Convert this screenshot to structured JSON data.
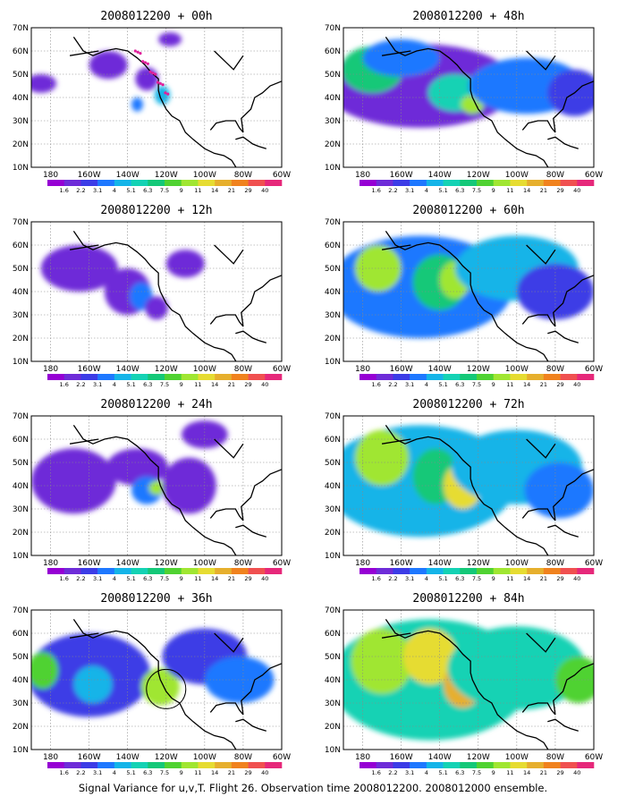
{
  "caption": "Signal Variance for u,v,T. Flight 26. Observation time 2008012200. 2008012000 ensemble.",
  "axes": {
    "lat_labels": [
      "70N",
      "60N",
      "50N",
      "40N",
      "30N",
      "20N",
      "10N"
    ],
    "lon_labels": [
      "180",
      "160W",
      "140W",
      "120W",
      "100W",
      "80W",
      "60W"
    ],
    "lon_range": [
      -190,
      -60
    ],
    "lat_range": [
      10,
      70
    ]
  },
  "colorbar": {
    "labels": [
      "1.6",
      "2.2",
      "3.1",
      "4",
      "5.1",
      "6.3",
      "7.5",
      "9",
      "11",
      "14",
      "21",
      "29",
      "40"
    ],
    "colors": [
      "#9600d4",
      "#6e2cd8",
      "#3c3ce6",
      "#1e78ff",
      "#14b4e8",
      "#14d2b4",
      "#14c878",
      "#50d232",
      "#a0e632",
      "#e6dc32",
      "#e6af2d",
      "#f0821e",
      "#f05050",
      "#e6287a"
    ]
  },
  "panels": [
    {
      "title": "2008012200 + 00h",
      "blobs": [
        [
          -150,
          54,
          10,
          6,
          1
        ],
        [
          -130,
          48,
          6,
          5,
          1
        ],
        [
          -122,
          41,
          4,
          4,
          4
        ],
        [
          -135,
          37,
          3,
          3,
          3
        ],
        [
          -185,
          46,
          8,
          4,
          1
        ],
        [
          -118,
          65,
          6,
          3,
          1
        ]
      ],
      "marker": "dots"
    },
    {
      "title": "2008012200 + 48h",
      "blobs": [
        [
          -150,
          45,
          50,
          18,
          1
        ],
        [
          -175,
          52,
          16,
          10,
          6
        ],
        [
          -160,
          57,
          20,
          8,
          3
        ],
        [
          -132,
          42,
          14,
          8,
          5
        ],
        [
          -123,
          37,
          6,
          4,
          8
        ],
        [
          -95,
          45,
          30,
          12,
          3
        ],
        [
          -70,
          42,
          14,
          10,
          2
        ]
      ]
    },
    {
      "title": "2008012200 + 12h",
      "blobs": [
        [
          -165,
          50,
          20,
          10,
          1
        ],
        [
          -140,
          40,
          12,
          10,
          1
        ],
        [
          -133,
          38,
          6,
          6,
          3
        ],
        [
          -125,
          33,
          6,
          5,
          1
        ],
        [
          -110,
          52,
          10,
          6,
          1
        ]
      ]
    },
    {
      "title": "2008012200 + 60h",
      "blobs": [
        [
          -150,
          42,
          48,
          22,
          3
        ],
        [
          -172,
          50,
          12,
          10,
          8
        ],
        [
          -140,
          44,
          14,
          12,
          6
        ],
        [
          -132,
          45,
          8,
          8,
          8
        ],
        [
          -100,
          50,
          32,
          14,
          4
        ],
        [
          -80,
          40,
          20,
          12,
          2
        ]
      ]
    },
    {
      "title": "2008012200 + 24h",
      "blobs": [
        [
          -168,
          42,
          22,
          14,
          1
        ],
        [
          -135,
          48,
          16,
          8,
          1
        ],
        [
          -130,
          38,
          8,
          6,
          3
        ],
        [
          -125,
          39,
          4,
          3,
          8
        ],
        [
          -108,
          40,
          14,
          12,
          1
        ],
        [
          -100,
          62,
          12,
          6,
          1
        ]
      ]
    },
    {
      "title": "2008012200 + 72h",
      "blobs": [
        [
          -150,
          42,
          50,
          24,
          4
        ],
        [
          -170,
          52,
          14,
          12,
          8
        ],
        [
          -142,
          44,
          12,
          12,
          6
        ],
        [
          -128,
          40,
          10,
          10,
          9
        ],
        [
          -100,
          48,
          34,
          16,
          4
        ],
        [
          -78,
          38,
          18,
          12,
          3
        ]
      ]
    },
    {
      "title": "2008012200 + 36h",
      "blobs": [
        [
          -160,
          42,
          32,
          18,
          2
        ],
        [
          -184,
          44,
          8,
          8,
          7
        ],
        [
          -158,
          38,
          10,
          8,
          4
        ],
        [
          -123,
          37,
          10,
          8,
          8
        ],
        [
          -100,
          50,
          22,
          12,
          2
        ],
        [
          -82,
          40,
          18,
          10,
          3
        ]
      ],
      "marker": "circle"
    },
    {
      "title": "2008012200 + 84h",
      "blobs": [
        [
          -145,
          40,
          52,
          26,
          5
        ],
        [
          -170,
          48,
          16,
          14,
          8
        ],
        [
          -145,
          50,
          14,
          12,
          9
        ],
        [
          -128,
          38,
          10,
          10,
          10
        ],
        [
          -100,
          45,
          36,
          18,
          5
        ],
        [
          -68,
          40,
          12,
          10,
          7
        ]
      ]
    }
  ]
}
